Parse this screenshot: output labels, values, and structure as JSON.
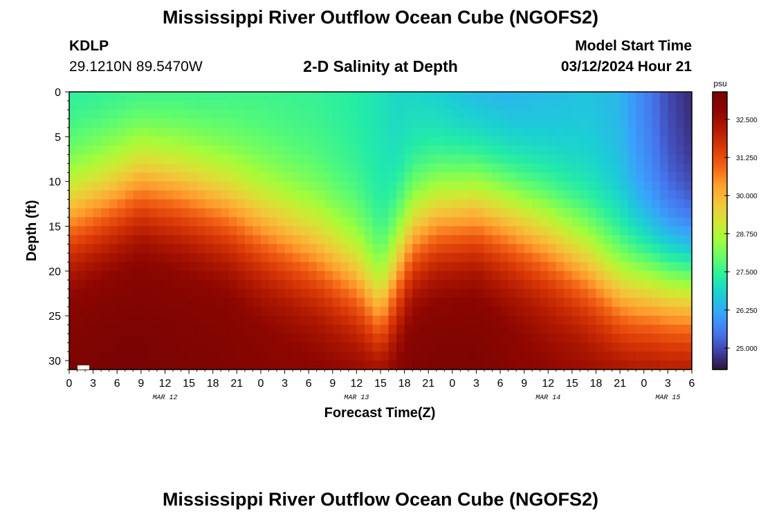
{
  "header": {
    "title": "Mississippi River Outflow Ocean Cube (NGOFS2)",
    "station": "KDLP",
    "coords": "29.1210N  89.5470W",
    "subtitle": "2-D Salinity at Depth",
    "model_start_label": "Model Start Time",
    "model_start_value": "03/12/2024 Hour 21",
    "footer_title": "Mississippi River Outflow Ocean Cube (NGOFS2)"
  },
  "chart_data": {
    "type": "heatmap",
    "title": "2-D Salinity at Depth",
    "xlabel": "Forecast Time(Z)",
    "ylabel": "Depth (ft)",
    "x_tick_labels": [
      "0",
      "3",
      "6",
      "9",
      "12",
      "15",
      "18",
      "21",
      "0",
      "3",
      "6",
      "9",
      "12",
      "15",
      "18",
      "21",
      "0",
      "3",
      "6",
      "9",
      "12",
      "15",
      "18",
      "21",
      "0",
      "3",
      "6"
    ],
    "date_labels": [
      {
        "label": "MAR 12",
        "tick_index": 4
      },
      {
        "label": "MAR 13",
        "tick_index": 12
      },
      {
        "label": "MAR 14",
        "tick_index": 20
      },
      {
        "label": "MAR 15",
        "tick_index": 25
      }
    ],
    "x_range_hours": [
      0,
      78
    ],
    "y_ticks": [
      0,
      5,
      10,
      15,
      20,
      25,
      30
    ],
    "y_range_ft": [
      0,
      31
    ],
    "y_inverted": true,
    "colorbar": {
      "unit": "psu",
      "ticks": [
        "32.500",
        "31.250",
        "30.000",
        "28.750",
        "27.500",
        "26.250",
        "25.000"
      ],
      "range": [
        24.3,
        33.4
      ]
    },
    "salinity_profiles": {
      "hours": [
        0,
        5,
        9,
        14,
        20,
        24,
        31,
        36,
        39,
        41,
        43,
        46,
        51,
        55,
        60,
        65,
        69,
        71,
        73,
        75,
        78
      ],
      "surface_psu": [
        27.4,
        27.5,
        27.6,
        27.6,
        27.6,
        27.6,
        27.5,
        27.3,
        27.1,
        26.9,
        26.9,
        26.8,
        26.5,
        26.4,
        26.5,
        26.6,
        26.4,
        25.9,
        25.5,
        25.0,
        24.6
      ],
      "bottom_psu": [
        33.3,
        33.4,
        33.4,
        33.3,
        33.2,
        33.0,
        32.8,
        32.6,
        32.4,
        32.8,
        33.2,
        33.3,
        33.3,
        33.0,
        32.7,
        32.5,
        32.3,
        32.2,
        32.2,
        32.1,
        32.1
      ],
      "halocline_depth_ft": [
        14,
        12,
        10,
        11,
        13,
        15,
        18,
        21,
        25,
        20,
        16,
        14,
        13,
        14,
        16,
        19,
        22,
        22,
        22,
        22,
        22
      ]
    }
  }
}
